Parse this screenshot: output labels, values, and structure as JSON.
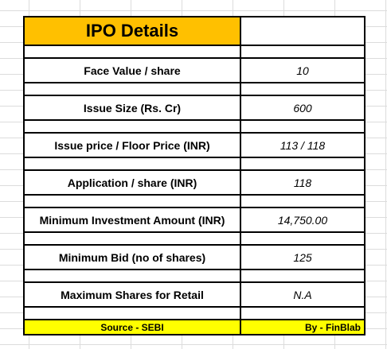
{
  "title": "IPO Details",
  "rows": [
    {
      "label": "Face Value / share",
      "value": "10"
    },
    {
      "label": "Issue Size (Rs. Cr)",
      "value": "600"
    },
    {
      "label": "Issue price / Floor Price (INR)",
      "value": "113 / 118"
    },
    {
      "label": "Application / share (INR)",
      "value": "118"
    },
    {
      "label": "Minimum Investment Amount (INR)",
      "value": "14,750.00"
    },
    {
      "label": "Minimum Bid (no of shares)",
      "value": "125"
    },
    {
      "label": "Maximum Shares for Retail",
      "value": "N.A"
    }
  ],
  "footer": {
    "source": "Source - SEBI",
    "by": "By - FinBlab"
  },
  "colors": {
    "title_bg": "#ffc000",
    "footer_bg": "#ffff00"
  }
}
